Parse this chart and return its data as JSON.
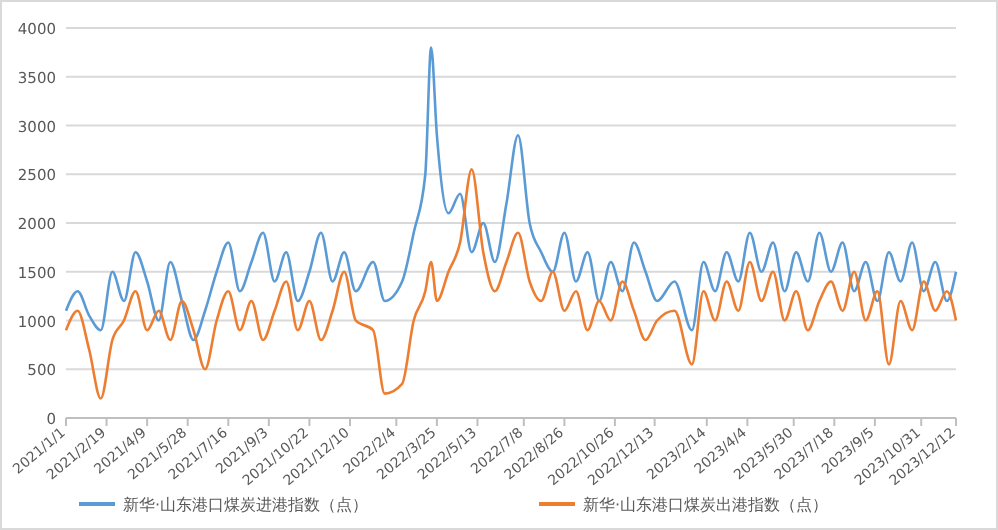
{
  "chart_data": {
    "type": "line",
    "x": [
      "2021-01-01",
      "2021-01-15",
      "2021-01-29",
      "2021-02-12",
      "2021-02-26",
      "2021-03-12",
      "2021-03-26",
      "2021-04-09",
      "2021-04-23",
      "2021-05-07",
      "2021-05-21",
      "2021-06-04",
      "2021-06-18",
      "2021-07-02",
      "2021-07-16",
      "2021-07-30",
      "2021-08-13",
      "2021-08-27",
      "2021-09-10",
      "2021-09-24",
      "2021-10-08",
      "2021-10-22",
      "2021-11-05",
      "2021-11-19",
      "2021-12-03",
      "2021-12-17",
      "2022-01-07",
      "2022-01-21",
      "2022-02-11",
      "2022-02-25",
      "2022-03-11",
      "2022-03-18",
      "2022-03-25",
      "2022-04-08",
      "2022-04-22",
      "2022-05-06",
      "2022-05-20",
      "2022-06-03",
      "2022-06-17",
      "2022-07-01",
      "2022-07-15",
      "2022-07-29",
      "2022-08-12",
      "2022-08-26",
      "2022-09-09",
      "2022-09-23",
      "2022-10-07",
      "2022-10-21",
      "2022-11-04",
      "2022-11-18",
      "2022-12-02",
      "2022-12-16",
      "2023-01-06",
      "2023-01-27",
      "2023-02-10",
      "2023-02-24",
      "2023-03-10",
      "2023-03-24",
      "2023-04-07",
      "2023-04-21",
      "2023-05-05",
      "2023-05-19",
      "2023-06-02",
      "2023-06-16",
      "2023-06-30",
      "2023-07-14",
      "2023-07-28",
      "2023-08-11",
      "2023-08-25",
      "2023-09-08",
      "2023-09-22",
      "2023-10-06",
      "2023-10-20",
      "2023-11-03",
      "2023-11-17",
      "2023-12-01",
      "2023-12-12"
    ],
    "series": [
      {
        "name": "新华·山东港口煤炭进港指数（点）",
        "color": "#5b9bd5",
        "values": [
          1100,
          1300,
          1050,
          900,
          1500,
          1200,
          1700,
          1400,
          1000,
          1600,
          1200,
          800,
          1100,
          1500,
          1800,
          1300,
          1600,
          1900,
          1400,
          1700,
          1200,
          1500,
          1900,
          1400,
          1700,
          1300,
          1600,
          1200,
          1400,
          1900,
          2500,
          3800,
          2900,
          2100,
          2300,
          1700,
          2000,
          1600,
          2200,
          2900,
          2000,
          1700,
          1500,
          1900,
          1400,
          1700,
          1200,
          1600,
          1300,
          1800,
          1500,
          1200,
          1400,
          900,
          1600,
          1300,
          1700,
          1400,
          1900,
          1500,
          1800,
          1300,
          1700,
          1400,
          1900,
          1500,
          1800,
          1300,
          1600,
          1200,
          1700,
          1400,
          1800,
          1300,
          1600,
          1200,
          1500
        ]
      },
      {
        "name": "新华·山东港口煤炭出港指数（点）",
        "color": "#ed7d31",
        "values": [
          900,
          1100,
          700,
          200,
          800,
          1000,
          1300,
          900,
          1100,
          800,
          1200,
          900,
          500,
          1000,
          1300,
          900,
          1200,
          800,
          1100,
          1400,
          900,
          1200,
          800,
          1100,
          1500,
          1000,
          900,
          250,
          350,
          1000,
          1300,
          1600,
          1200,
          1500,
          1800,
          2550,
          1700,
          1300,
          1600,
          1900,
          1400,
          1200,
          1500,
          1100,
          1300,
          900,
          1200,
          1000,
          1400,
          1100,
          800,
          1000,
          1100,
          550,
          1300,
          1000,
          1400,
          1100,
          1600,
          1200,
          1500,
          1000,
          1300,
          900,
          1200,
          1400,
          1100,
          1500,
          1000,
          1300,
          550,
          1200,
          900,
          1400,
          1100,
          1300,
          1000
        ]
      }
    ],
    "xlim": [
      "2021-01-01",
      "2023-12-12"
    ],
    "xticks": [
      {
        "value": "2021-01-01",
        "label": "2021/1/1"
      },
      {
        "value": "2021-02-19",
        "label": "2021/2/19"
      },
      {
        "value": "2021-04-09",
        "label": "2021/4/9"
      },
      {
        "value": "2021-05-28",
        "label": "2021/5/28"
      },
      {
        "value": "2021-07-16",
        "label": "2021/7/16"
      },
      {
        "value": "2021-09-03",
        "label": "2021/9/3"
      },
      {
        "value": "2021-10-22",
        "label": "2021/10/22"
      },
      {
        "value": "2021-12-10",
        "label": "2021/12/10"
      },
      {
        "value": "2022-02-04",
        "label": "2022/2/4"
      },
      {
        "value": "2022-03-25",
        "label": "2022/3/25"
      },
      {
        "value": "2022-05-13",
        "label": "2022/5/13"
      },
      {
        "value": "2022-07-08",
        "label": "2022/7/8"
      },
      {
        "value": "2022-08-26",
        "label": "2022/8/26"
      },
      {
        "value": "2022-10-26",
        "label": "2022/10/26"
      },
      {
        "value": "2022-12-13",
        "label": "2022/12/13"
      },
      {
        "value": "2023-02-14",
        "label": "2023/2/14"
      },
      {
        "value": "2023-04-04",
        "label": "2023/4/4"
      },
      {
        "value": "2023-05-30",
        "label": "2023/5/30"
      },
      {
        "value": "2023-07-18",
        "label": "2023/7/18"
      },
      {
        "value": "2023-09-05",
        "label": "2023/9/5"
      },
      {
        "value": "2023-10-31",
        "label": "2023/10/31"
      },
      {
        "value": "2023-12-12",
        "label": "2023/12/12"
      }
    ],
    "ylim": [
      0,
      4000
    ],
    "yticks": [
      {
        "value": 0,
        "label": "0"
      },
      {
        "value": 500,
        "label": "500"
      },
      {
        "value": 1000,
        "label": "1000"
      },
      {
        "value": 1500,
        "label": "1500"
      },
      {
        "value": 2000,
        "label": "2000"
      },
      {
        "value": 2500,
        "label": "2500"
      },
      {
        "value": 3000,
        "label": "3000"
      },
      {
        "value": 3500,
        "label": "3500"
      },
      {
        "value": 4000,
        "label": "4000"
      }
    ],
    "grid": "y",
    "legend": "bottom",
    "marker": "none",
    "line_style": "solid"
  }
}
